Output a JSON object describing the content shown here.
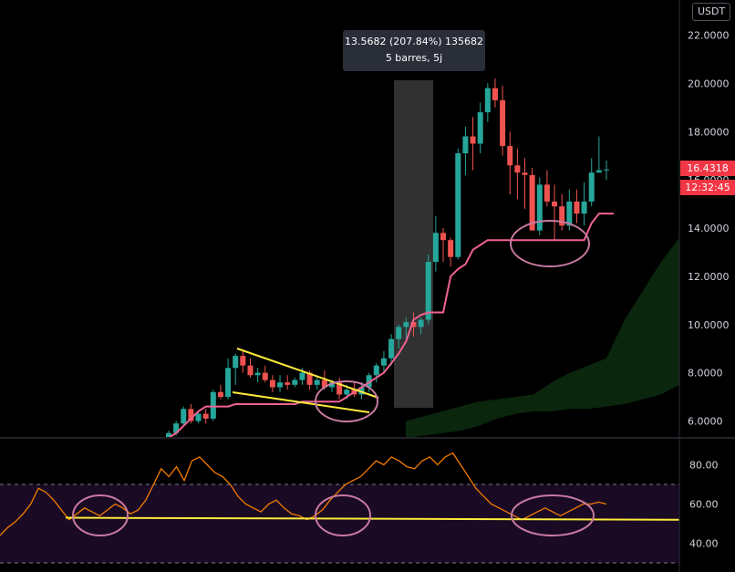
{
  "currency": "USDT",
  "tooltip": {
    "line1": "13.5682 (207.84%) 135682",
    "line2": "5 barres, 5j"
  },
  "last_price": {
    "value": "16.4318",
    "countdown": "12:32:45"
  },
  "colors": {
    "up": "#26a69a",
    "down": "#ef5350",
    "trend": "#f06292",
    "cloud": "#0d3311",
    "trendline": "#ffeb3b",
    "rsi": "#f57c00",
    "rsi_band": "#1a0a24"
  },
  "chart_data": [
    {
      "type": "candlestick",
      "title": "",
      "y_ticks": [
        "22.0000",
        "20.0000",
        "18.0000",
        "16.0000",
        "14.0000",
        "12.0000",
        "10.0000",
        "8.0000",
        "6.0000"
      ],
      "ylim": [
        5.3,
        23.5
      ],
      "candles": [
        [
          5.3,
          5.6,
          5.2,
          5.5
        ],
        [
          5.5,
          6.0,
          5.4,
          5.9
        ],
        [
          5.9,
          6.6,
          5.8,
          6.5
        ],
        [
          6.5,
          6.7,
          5.9,
          6.0
        ],
        [
          6.0,
          6.4,
          5.9,
          6.3
        ],
        [
          6.3,
          6.5,
          5.9,
          6.1
        ],
        [
          6.1,
          7.3,
          6.0,
          7.2
        ],
        [
          7.2,
          7.5,
          6.9,
          7.0
        ],
        [
          7.0,
          8.6,
          6.9,
          8.2
        ],
        [
          8.2,
          8.8,
          7.5,
          8.7
        ],
        [
          8.7,
          8.9,
          8.0,
          8.3
        ],
        [
          8.3,
          8.6,
          7.8,
          7.9
        ],
        [
          7.9,
          8.2,
          7.6,
          8.0
        ],
        [
          8.0,
          8.3,
          7.6,
          7.7
        ],
        [
          7.7,
          7.9,
          7.2,
          7.4
        ],
        [
          7.4,
          7.9,
          7.2,
          7.6
        ],
        [
          7.6,
          7.9,
          7.3,
          7.5
        ],
        [
          7.5,
          7.8,
          7.4,
          7.7
        ],
        [
          7.7,
          8.2,
          7.5,
          8.0
        ],
        [
          8.0,
          8.1,
          7.3,
          7.5
        ],
        [
          7.5,
          7.9,
          7.3,
          7.7
        ],
        [
          7.7,
          8.1,
          7.3,
          7.4
        ],
        [
          7.4,
          7.7,
          7.2,
          7.6
        ],
        [
          7.6,
          7.8,
          6.9,
          7.1
        ],
        [
          7.1,
          7.5,
          6.9,
          7.3
        ],
        [
          7.3,
          7.6,
          7.0,
          7.1
        ],
        [
          7.1,
          7.6,
          6.9,
          7.4
        ],
        [
          7.4,
          8.0,
          7.2,
          7.9
        ],
        [
          7.9,
          8.4,
          7.6,
          8.3
        ],
        [
          8.3,
          8.9,
          8.0,
          8.6
        ],
        [
          8.6,
          9.6,
          8.3,
          9.4
        ],
        [
          9.4,
          10.0,
          9.0,
          9.9
        ],
        [
          9.9,
          10.3,
          9.4,
          10.1
        ],
        [
          10.1,
          10.5,
          9.5,
          9.9
        ],
        [
          9.9,
          10.3,
          9.6,
          10.2
        ],
        [
          10.2,
          12.9,
          10.0,
          12.6
        ],
        [
          12.6,
          14.5,
          12.2,
          13.8
        ],
        [
          13.8,
          14.0,
          12.6,
          13.5
        ],
        [
          13.5,
          13.6,
          12.4,
          12.8
        ],
        [
          12.8,
          17.3,
          12.7,
          17.1
        ],
        [
          17.1,
          18.2,
          16.2,
          17.8
        ],
        [
          17.8,
          18.6,
          16.4,
          17.5
        ],
        [
          17.5,
          19.2,
          17.1,
          18.8
        ],
        [
          18.8,
          20.0,
          18.4,
          19.8
        ],
        [
          19.8,
          20.2,
          19.0,
          19.3
        ],
        [
          19.3,
          19.9,
          17.0,
          17.4
        ],
        [
          17.4,
          18.0,
          15.4,
          16.6
        ],
        [
          16.6,
          17.3,
          15.2,
          16.3
        ],
        [
          16.3,
          16.9,
          14.8,
          16.2
        ],
        [
          16.2,
          16.5,
          13.9,
          13.9
        ],
        [
          13.9,
          16.1,
          13.7,
          15.8
        ],
        [
          15.8,
          16.4,
          14.9,
          15.1
        ],
        [
          15.1,
          15.8,
          13.5,
          14.9
        ],
        [
          14.9,
          15.4,
          13.9,
          14.1
        ],
        [
          14.1,
          15.6,
          13.9,
          15.1
        ],
        [
          15.1,
          15.6,
          14.2,
          14.6
        ],
        [
          14.6,
          15.9,
          14.1,
          15.1
        ],
        [
          15.1,
          16.9,
          14.9,
          16.3
        ],
        [
          16.3,
          17.8,
          16.3,
          16.4
        ],
        [
          16.4,
          16.8,
          16.0,
          16.43
        ]
      ],
      "trend_line": [
        5.3,
        5.5,
        5.8,
        6.1,
        6.4,
        6.6,
        6.6,
        6.6,
        6.6,
        6.7,
        6.7,
        6.7,
        6.7,
        6.7,
        6.7,
        6.7,
        6.7,
        6.7,
        6.8,
        6.8,
        6.8,
        6.8,
        6.8,
        6.8,
        7.0,
        7.2,
        7.4,
        7.6,
        7.8,
        8.0,
        8.4,
        8.8,
        9.3,
        10.2,
        10.4,
        10.5,
        10.5,
        10.5,
        12.0,
        12.3,
        12.5,
        13.1,
        13.3,
        13.5,
        13.5,
        13.5,
        13.5,
        13.5,
        13.5,
        13.5,
        13.5,
        13.5,
        13.5,
        13.5,
        13.5,
        13.5,
        13.5,
        14.2,
        14.6,
        14.6
      ],
      "cloud": {
        "lower": [
          5.3,
          5.4,
          5.5,
          5.6,
          5.8,
          6.1,
          6.3,
          6.4,
          6.4,
          6.5,
          6.5,
          6.6,
          6.7,
          6.9,
          7.1,
          7.5
        ],
        "upper": [
          6.0,
          6.2,
          6.4,
          6.6,
          6.8,
          6.9,
          7.0,
          7.1,
          7.6,
          8.0,
          8.3,
          8.6,
          10.2,
          11.4,
          12.6,
          13.6
        ]
      }
    },
    {
      "type": "line",
      "title": "",
      "y_ticks": [
        "80.00",
        "60.00",
        "40.00"
      ],
      "ylim": [
        28,
        92
      ],
      "bands": [
        70,
        30
      ],
      "values": [
        44,
        48,
        51,
        55,
        60,
        68,
        66,
        62,
        57,
        52,
        55,
        58,
        56,
        54,
        57,
        60,
        58,
        55,
        57,
        62,
        70,
        78,
        74,
        79,
        72,
        82,
        84,
        80,
        76,
        74,
        70,
        64,
        60,
        58,
        56,
        60,
        62,
        58,
        55,
        54,
        52,
        54,
        57,
        62,
        66,
        70,
        72,
        74,
        78,
        82,
        80,
        84,
        82,
        79,
        78,
        82,
        84,
        80,
        84,
        86,
        80,
        74,
        68,
        64,
        60,
        58,
        56,
        54,
        52,
        54,
        56,
        58,
        56,
        54,
        56,
        58,
        60,
        60,
        61,
        60
      ],
      "support_y": [
        53,
        52
      ]
    }
  ]
}
